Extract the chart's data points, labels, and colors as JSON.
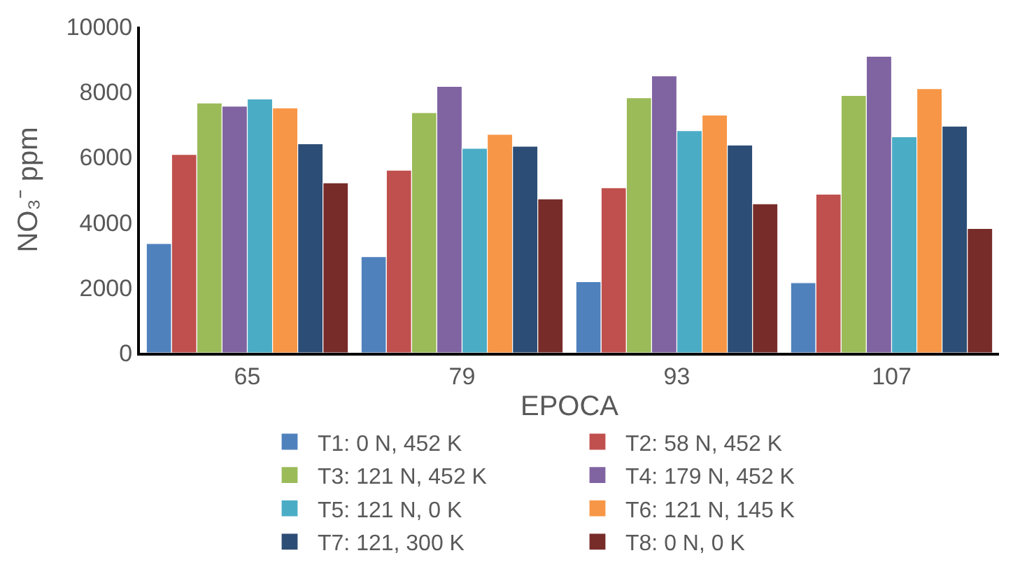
{
  "chart_data": {
    "type": "bar",
    "xlabel": "EPOCA",
    "ylabel": "NO₃⁻ ppm",
    "categories": [
      "65",
      "79",
      "93",
      "107"
    ],
    "series": [
      {
        "name": "T1: 0 N, 452 K",
        "color": "#4f81bd",
        "values": [
          3350,
          2950,
          2180,
          2150
        ]
      },
      {
        "name": "T2: 58 N, 452 K",
        "color": "#c0504d",
        "values": [
          6080,
          5600,
          5060,
          4860
        ]
      },
      {
        "name": "T3: 121 N, 452 K",
        "color": "#9bbb59",
        "values": [
          7660,
          7360,
          7820,
          7890
        ]
      },
      {
        "name": "T4: 179 N, 452 K",
        "color": "#8064a2",
        "values": [
          7560,
          8170,
          8490,
          9090
        ]
      },
      {
        "name": "T5: 121 N, 0 K",
        "color": "#4bacc6",
        "values": [
          7780,
          6270,
          6810,
          6620
        ]
      },
      {
        "name": "T6: 121 N, 145 K",
        "color": "#f79646",
        "values": [
          7510,
          6700,
          7290,
          8100
        ]
      },
      {
        "name": "T7: 121, 300 K",
        "color": "#2c4d75",
        "values": [
          6410,
          6330,
          6370,
          6950
        ]
      },
      {
        "name": "T8: 0 N, 0 K",
        "color": "#772c2a",
        "values": [
          5210,
          4720,
          4570,
          3810
        ]
      }
    ],
    "ylim": [
      0,
      10000
    ],
    "yticks": [
      0,
      2000,
      4000,
      6000,
      8000,
      10000
    ],
    "grid": false,
    "legend": "bottom"
  }
}
